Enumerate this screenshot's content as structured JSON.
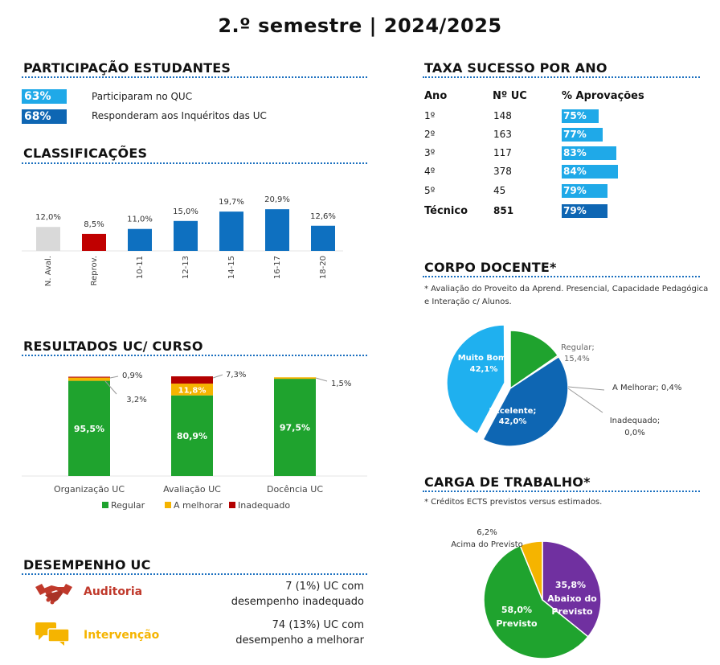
{
  "title": "2.º semestre | 2024/2025",
  "participacao": {
    "heading": "PARTICIPAÇÃO ESTUDANTES",
    "rows": [
      {
        "pct": "63%",
        "label": "Participaram no QUC",
        "color": "#1fa9e8"
      },
      {
        "pct": "68%",
        "label": "Responderam aos Inquéritos das UC",
        "color": "#0e66b3"
      }
    ]
  },
  "classificacoes": {
    "heading": "CLASSIFICAÇÕES"
  },
  "resultados": {
    "heading": "RESULTADOS UC/ CURSO"
  },
  "desempenho": {
    "heading": "DESEMPENHO  UC",
    "auditoria": {
      "label": "Auditoria",
      "line1": "7  (1%) UC com",
      "line2": "desempenho inadequado"
    },
    "intervencao": {
      "label": "Intervenção",
      "line1": "74  (13%) UC com",
      "line2": "desempenho a melhorar"
    }
  },
  "taxa": {
    "heading": "TAXA SUCESSO POR ANO",
    "headers": {
      "ano": "Ano",
      "n": "Nº UC",
      "pct": "% Aprovações"
    },
    "rows": [
      {
        "ano": "1º",
        "n": "148",
        "pct": "75%",
        "value": 75,
        "color": "#1fa9e8"
      },
      {
        "ano": "2º",
        "n": "163",
        "pct": "77%",
        "value": 77,
        "color": "#1fa9e8"
      },
      {
        "ano": "3º",
        "n": "117",
        "pct": "83%",
        "value": 83,
        "color": "#1fa9e8"
      },
      {
        "ano": "4º",
        "n": "378",
        "pct": "84%",
        "value": 84,
        "color": "#1fa9e8"
      },
      {
        "ano": "5º",
        "n": "45",
        "pct": "79%",
        "value": 79,
        "color": "#1fa9e8"
      },
      {
        "ano": "Técnico",
        "n": "851",
        "pct": "79%",
        "value": 79,
        "color": "#0e66b3"
      }
    ]
  },
  "corpo": {
    "heading": "CORPO DOCENTE*",
    "note1": "* Avaliação do Proveito da Aprend. Presencial, Capacidade Pedagógica",
    "note2": "e Interação c/ Alunos."
  },
  "carga": {
    "heading": "CARGA DE TRABALHO*",
    "note": "* Créditos ECTS previstos versus estimados."
  },
  "chart_data": [
    {
      "type": "bar",
      "title": "CLASSIFICAÇÕES",
      "categories": [
        "N. Aval.",
        "Reprov.",
        "10-11",
        "12-13",
        "14-15",
        "16-17",
        "18-20"
      ],
      "values": [
        12.0,
        8.5,
        11.0,
        15.0,
        19.7,
        20.9,
        12.6
      ],
      "labels": [
        "12,0%",
        "8,5%",
        "11,0%",
        "15,0%",
        "19,7%",
        "20,9%",
        "12,6%"
      ],
      "colors": [
        "#d9d9d9",
        "#c00000",
        "#0e70c0",
        "#0e70c0",
        "#0e70c0",
        "#0e70c0",
        "#0e70c0"
      ],
      "ylim": [
        0,
        22
      ]
    },
    {
      "type": "bar",
      "stacked": true,
      "title": "RESULTADOS UC/ CURSO",
      "categories": [
        "Organização UC",
        "Avaliação UC",
        "Docência UC"
      ],
      "series": [
        {
          "name": "Regular",
          "values": [
            95.5,
            80.9,
            97.5
          ],
          "color": "#1fa32e"
        },
        {
          "name": "A melhorar",
          "values": [
            3.2,
            11.8,
            1.5
          ],
          "color": "#f5b400"
        },
        {
          "name": "Inadequado",
          "values": [
            0.9,
            7.3,
            0.0
          ],
          "color": "#b30000"
        }
      ],
      "labels": {
        "regular": [
          "95,5%",
          "80,9%",
          "97,5%"
        ],
        "amelhorar": [
          "3,2%",
          "11,8%",
          "1,5%"
        ],
        "inadequado": [
          "0,9%",
          "7,3%",
          ""
        ]
      },
      "legend": "bottom"
    },
    {
      "type": "pie",
      "title": "CORPO DOCENTE*",
      "slices": [
        {
          "name": "Regular",
          "value": 15.4,
          "label": "Regular;",
          "pct": "15,4%",
          "color": "#1fa32e"
        },
        {
          "name": "A Melhorar",
          "value": 0.4,
          "label": "A Melhorar; 0,4%",
          "color": "#f5b400"
        },
        {
          "name": "Inadequado",
          "value": 0.0,
          "label": "Inadequado;",
          "pct": "0,0%",
          "color": "#b30000"
        },
        {
          "name": "Excelente",
          "value": 42.0,
          "label": "Excelente;",
          "pct": "42,0%",
          "color": "#0e66b3"
        },
        {
          "name": "Muito Bom",
          "value": 42.1,
          "label": "Muito Bom;",
          "pct": "42,1%",
          "color": "#1fb0ef"
        }
      ]
    },
    {
      "type": "pie",
      "title": "CARGA DE TRABALHO*",
      "slices": [
        {
          "name": "Abaixo do Previsto",
          "value": 35.8,
          "l1": "35,8%",
          "l2": "Abaixo do",
          "l3": "Previsto",
          "color": "#7030a0"
        },
        {
          "name": "Previsto",
          "value": 58.0,
          "l1": "58,0%",
          "l2": "Previsto",
          "color": "#1fa32e"
        },
        {
          "name": "Acima do Previsto",
          "value": 6.2,
          "l1": "6,2%",
          "l2": "Acima do Previsto",
          "color": "#f5b400"
        }
      ]
    }
  ]
}
